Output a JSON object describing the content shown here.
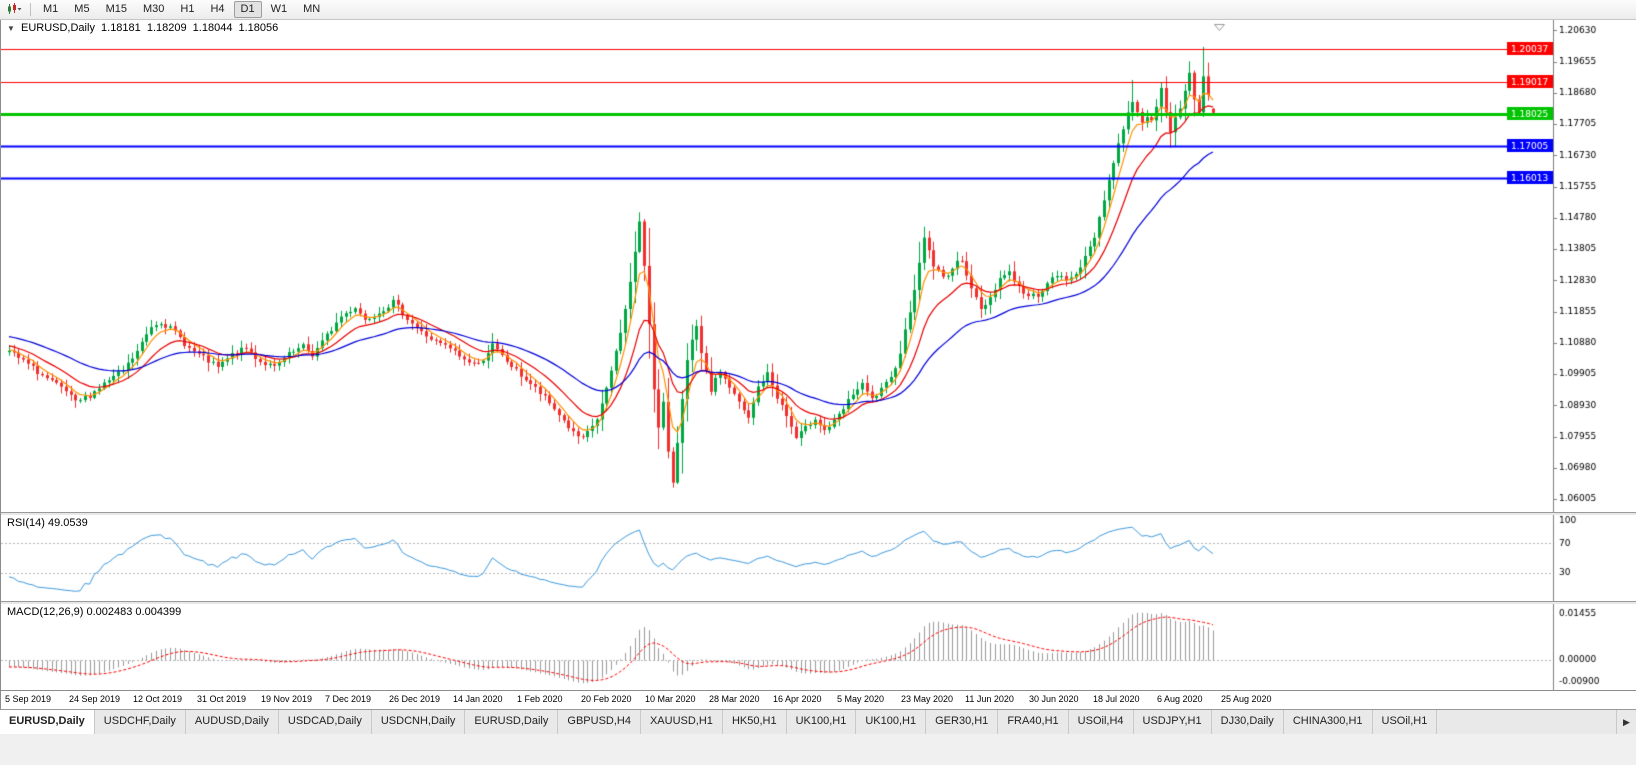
{
  "icons": {
    "expand_arrow": "▼",
    "tab_scroll_right": "▶",
    "chart_symbol_icon": "candlestick-chart"
  },
  "toolbar": {
    "timeframes": [
      "M1",
      "M5",
      "M15",
      "M30",
      "H1",
      "H4",
      "D1",
      "W1",
      "MN"
    ],
    "active_timeframe": "D1"
  },
  "chart_header": {
    "symbol_label": "EURUSD,Daily",
    "open": "1.18181",
    "high": "1.18209",
    "low": "1.18044",
    "close": "1.18056"
  },
  "chart_data": {
    "type": "candlestick",
    "symbol": "EURUSD",
    "timeframe": "Daily",
    "current_ohlc": {
      "open": 1.18181,
      "high": 1.18209,
      "low": 1.18044,
      "close": 1.18056
    },
    "ylim": [
      1.056,
      1.2095
    ],
    "y_ticks": [
      1.2063,
      1.19655,
      1.1868,
      1.17705,
      1.1673,
      1.15755,
      1.1478,
      1.13805,
      1.1283,
      1.11855,
      1.1088,
      1.09905,
      1.0893,
      1.07955,
      1.0698,
      1.06005
    ],
    "x_tick_labels": [
      "5 Sep 2019",
      "24 Sep 2019",
      "12 Oct 2019",
      "31 Oct 2019",
      "19 Nov 2019",
      "7 Dec 2019",
      "26 Dec 2019",
      "14 Jan 2020",
      "1 Feb 2020",
      "20 Feb 2020",
      "10 Mar 2020",
      "28 Mar 2020",
      "16 Apr 2020",
      "5 May 2020",
      "23 May 2020",
      "11 Jun 2020",
      "30 Jun 2020",
      "18 Jul 2020",
      "6 Aug 2020",
      "25 Aug 2020"
    ],
    "candle_count": 255,
    "up_color": "#00A843",
    "down_color": "#F22F2F",
    "price_waypoints": [
      [
        0,
        1.106
      ],
      [
        4,
        1.102
      ],
      [
        8,
        1.0975
      ],
      [
        12,
        1.0935
      ],
      [
        14,
        1.09
      ],
      [
        17,
        1.0925
      ],
      [
        20,
        1.096
      ],
      [
        24,
        1.1
      ],
      [
        27,
        1.106
      ],
      [
        30,
        1.114
      ],
      [
        32,
        1.1155
      ],
      [
        35,
        1.112
      ],
      [
        38,
        1.107
      ],
      [
        41,
        1.104
      ],
      [
        44,
        1.101
      ],
      [
        47,
        1.105
      ],
      [
        50,
        1.107
      ],
      [
        53,
        1.103
      ],
      [
        56,
        1.101
      ],
      [
        59,
        1.105
      ],
      [
        62,
        1.1075
      ],
      [
        64,
        1.105
      ],
      [
        67,
        1.111
      ],
      [
        70,
        1.117
      ],
      [
        73,
        1.12
      ],
      [
        75,
        1.116
      ],
      [
        78,
        1.1185
      ],
      [
        81,
        1.1215
      ],
      [
        84,
        1.1165
      ],
      [
        87,
        1.112
      ],
      [
        90,
        1.109
      ],
      [
        93,
        1.107
      ],
      [
        96,
        1.1035
      ],
      [
        99,
        1.102
      ],
      [
        102,
        1.108
      ],
      [
        104,
        1.1045
      ],
      [
        107,
        1.1
      ],
      [
        110,
        1.096
      ],
      [
        113,
        1.0915
      ],
      [
        116,
        1.0865
      ],
      [
        119,
        1.0805
      ],
      [
        121,
        1.0785
      ],
      [
        124,
        1.085
      ],
      [
        126,
        1.094
      ],
      [
        128,
        1.106
      ],
      [
        130,
        1.119
      ],
      [
        132,
        1.137
      ],
      [
        133,
        1.146
      ],
      [
        134,
        1.133
      ],
      [
        135,
        1.115
      ],
      [
        136,
        1.095
      ],
      [
        137,
        1.082
      ],
      [
        138,
        1.09
      ],
      [
        139,
        1.074
      ],
      [
        140,
        1.0655
      ],
      [
        141,
        1.078
      ],
      [
        142,
        1.092
      ],
      [
        143,
        1.103
      ],
      [
        144,
        1.109
      ],
      [
        145,
        1.1135
      ],
      [
        146,
        1.105
      ],
      [
        147,
        1.099
      ],
      [
        148,
        1.094
      ],
      [
        150,
        1.1
      ],
      [
        152,
        1.095
      ],
      [
        154,
        1.09
      ],
      [
        156,
        1.085
      ],
      [
        158,
        1.095
      ],
      [
        160,
        1.099
      ],
      [
        162,
        1.092
      ],
      [
        164,
        1.086
      ],
      [
        166,
        1.079
      ],
      [
        168,
        1.082
      ],
      [
        170,
        1.0855
      ],
      [
        172,
        1.0815
      ],
      [
        174,
        1.084
      ],
      [
        176,
        1.088
      ],
      [
        178,
        1.093
      ],
      [
        180,
        1.0955
      ],
      [
        182,
        1.091
      ],
      [
        184,
        1.094
      ],
      [
        186,
        1.0975
      ],
      [
        188,
        1.106
      ],
      [
        190,
        1.119
      ],
      [
        192,
        1.133
      ],
      [
        193,
        1.142
      ],
      [
        195,
        1.133
      ],
      [
        197,
        1.129
      ],
      [
        199,
        1.132
      ],
      [
        201,
        1.135
      ],
      [
        203,
        1.126
      ],
      [
        205,
        1.119
      ],
      [
        207,
        1.123
      ],
      [
        209,
        1.129
      ],
      [
        211,
        1.131
      ],
      [
        213,
        1.126
      ],
      [
        215,
        1.123
      ],
      [
        217,
        1.124
      ],
      [
        219,
        1.127
      ],
      [
        221,
        1.13
      ],
      [
        223,
        1.128
      ],
      [
        225,
        1.131
      ],
      [
        227,
        1.135
      ],
      [
        229,
        1.142
      ],
      [
        231,
        1.154
      ],
      [
        233,
        1.165
      ],
      [
        235,
        1.176
      ],
      [
        237,
        1.1845
      ],
      [
        239,
        1.178
      ],
      [
        241,
        1.179
      ],
      [
        243,
        1.1875
      ],
      [
        244,
        1.18
      ],
      [
        245,
        1.1745
      ],
      [
        246,
        1.179
      ],
      [
        247,
        1.1815
      ],
      [
        248,
        1.188
      ],
      [
        249,
        1.193
      ],
      [
        250,
        1.1855
      ],
      [
        251,
        1.1805
      ],
      [
        252,
        1.1915
      ],
      [
        253,
        1.1855
      ],
      [
        254,
        1.1806
      ]
    ],
    "wick_overrides": {
      "14": {
        "l": 1.0885
      },
      "133": {
        "h": 1.1495
      },
      "140": {
        "l": 1.0636
      },
      "193": {
        "h": 1.145
      },
      "237": {
        "h": 1.1908
      },
      "249": {
        "h": 1.1966
      },
      "252": {
        "h": 1.2011
      },
      "254": {
        "o": 1.18181,
        "h": 1.18209,
        "l": 1.18044,
        "c": 1.18056
      }
    },
    "horizontal_lines": [
      {
        "price": 1.20037,
        "label": "1.20037",
        "color": "#FF0000",
        "width": 1
      },
      {
        "price": 1.19017,
        "label": "1.19017",
        "color": "#FF0000",
        "width": 1
      },
      {
        "price": 1.18025,
        "label": "1.18025",
        "color": "#00C400",
        "width": 3
      },
      {
        "price": 1.17005,
        "label": "1.17005",
        "color": "#0000FF",
        "width": 2
      },
      {
        "price": 1.16013,
        "label": "1.16013",
        "color": "#0000FF",
        "width": 2
      }
    ],
    "moving_averages": [
      {
        "name": "fast-ma",
        "period": 5,
        "color": "#FF9100"
      },
      {
        "name": "medium-ma",
        "period": 13,
        "color": "#E80000"
      },
      {
        "name": "slow-ma",
        "period": 34,
        "color": "#0000D8"
      }
    ],
    "indicators": [
      {
        "name": "RSI",
        "label": "RSI(14) 49.0539",
        "period": 14,
        "value": 49.0539,
        "levels": [
          30,
          70
        ],
        "y_ticks": [
          100,
          70,
          30
        ],
        "color": "#3E9ADE"
      },
      {
        "name": "MACD",
        "label": "MACD(12,26,9) 0.002483 0.004399",
        "params": [
          12,
          26,
          9
        ],
        "values": [
          0.002483,
          0.004399
        ],
        "y_ticks": [
          "0.01455",
          "0.00000",
          "-0.00900"
        ],
        "histogram_color": "#9A9A9A",
        "signal_color": "#FF0000"
      }
    ]
  },
  "tabs": {
    "active_index": 0,
    "items": [
      "EURUSD,Daily",
      "USDCHF,Daily",
      "AUDUSD,Daily",
      "USDCAD,Daily",
      "USDCNH,Daily",
      "EURUSD,Daily",
      "GBPUSD,H4",
      "XAUUSD,H1",
      "HK50,H1",
      "UK100,H1",
      "UK100,H1",
      "GER30,H1",
      "FRA40,H1",
      "USOil,H4",
      "USDJPY,H1",
      "DJ30,Daily",
      "CHINA300,H1",
      "USOil,H1"
    ]
  }
}
